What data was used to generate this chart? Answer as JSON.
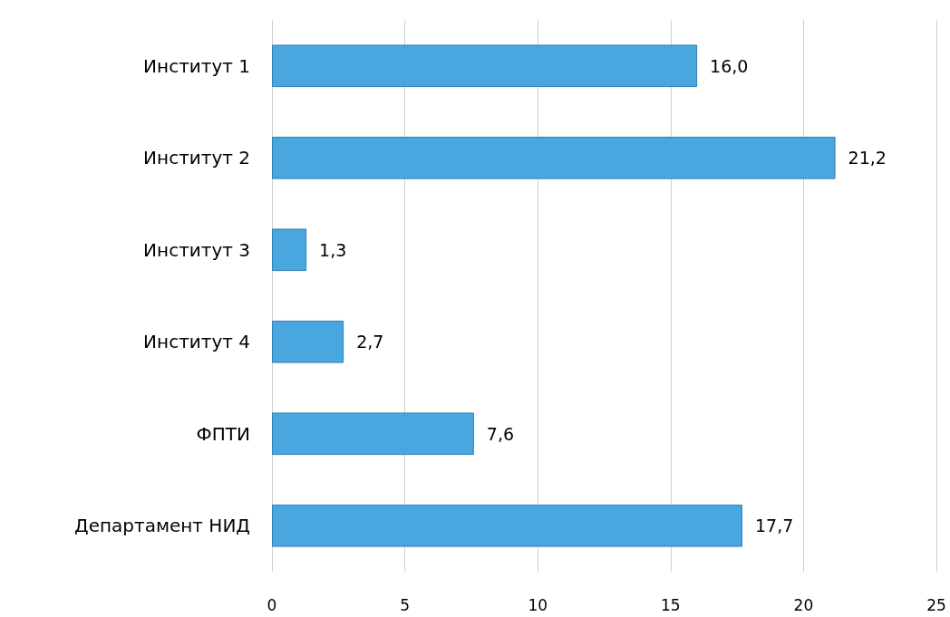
{
  "chart_data": {
    "type": "bar",
    "orientation": "horizontal",
    "categories": [
      "Институт 1",
      "Институт 2",
      "Институт 3",
      "Институт 4",
      "ФПТИ",
      "Департамент НИД"
    ],
    "values": [
      16.0,
      21.2,
      1.3,
      2.7,
      7.6,
      17.7
    ],
    "value_labels": [
      "16,0",
      "21,2",
      "1,3",
      "2,7",
      "7,6",
      "17,7"
    ],
    "color": "#4aa6df",
    "xlim": [
      0,
      25
    ],
    "xticks": [
      0,
      5,
      10,
      15,
      20,
      25
    ],
    "grid": "x"
  }
}
